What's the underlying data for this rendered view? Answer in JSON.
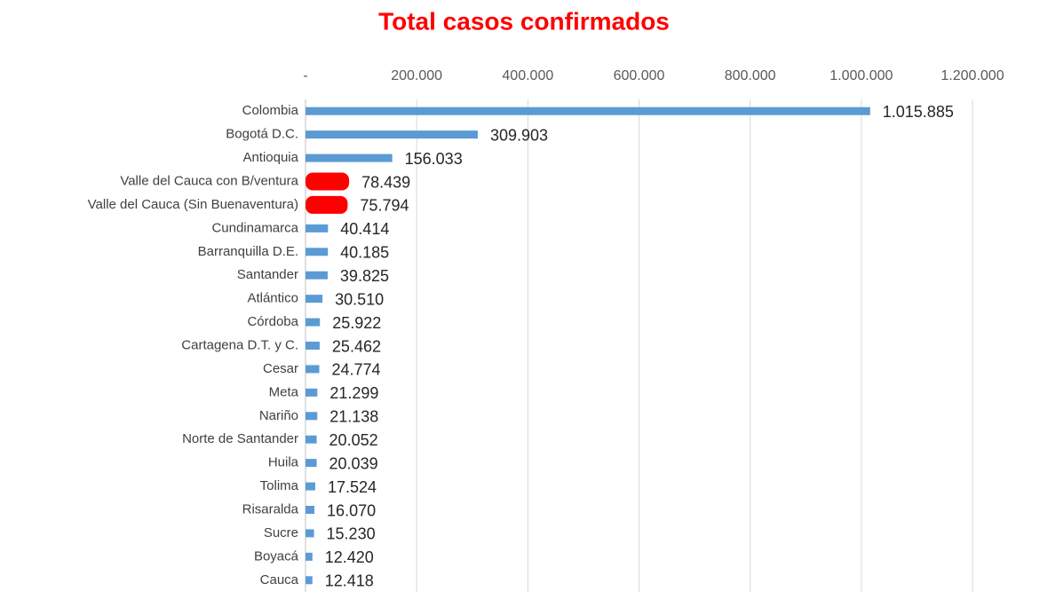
{
  "chart_data": {
    "type": "hbar",
    "title": "Total casos confirmados",
    "categories": [
      "Colombia",
      "Bogotá D.C.",
      "Antioquia",
      "Valle del Cauca con B/ventura",
      "Valle del Cauca (Sin Buenaventura)",
      "Cundinamarca",
      "Barranquilla D.E.",
      "Santander",
      "Atlántico",
      "Córdoba",
      "Cartagena D.T. y C.",
      "Cesar",
      "Meta",
      "Nariño",
      "Norte de Santander",
      "Huila",
      "Tolima",
      "Risaralda",
      "Sucre",
      "Boyacá",
      "Cauca"
    ],
    "values": [
      1015885,
      309903,
      156033,
      78439,
      75794,
      40414,
      40185,
      39825,
      30510,
      25922,
      25462,
      24774,
      21299,
      21138,
      20052,
      20039,
      17524,
      16070,
      15230,
      12420,
      12418
    ],
    "value_labels": [
      "1.015.885",
      "309.903",
      "156.033",
      "78.439",
      "75.794",
      "40.414",
      "40.185",
      "39.825",
      "30.510",
      "25.922",
      "25.462",
      "24.774",
      "21.299",
      "21.138",
      "20.052",
      "20.039",
      "17.524",
      "16.070",
      "15.230",
      "12.420",
      "12.418"
    ],
    "colors": [
      "#5b9bd5",
      "#5b9bd5",
      "#5b9bd5",
      "#ff0000",
      "#ff0000",
      "#5b9bd5",
      "#5b9bd5",
      "#5b9bd5",
      "#5b9bd5",
      "#5b9bd5",
      "#5b9bd5",
      "#5b9bd5",
      "#5b9bd5",
      "#5b9bd5",
      "#5b9bd5",
      "#5b9bd5",
      "#5b9bd5",
      "#5b9bd5",
      "#5b9bd5",
      "#5b9bd5",
      "#5b9bd5"
    ],
    "xlim": [
      0,
      1200000
    ],
    "xticks": [
      {
        "value": 0,
        "label": "-"
      },
      {
        "value": 200000,
        "label": "200.000"
      },
      {
        "value": 400000,
        "label": "400.000"
      },
      {
        "value": 600000,
        "label": "600.000"
      },
      {
        "value": 800000,
        "label": "800.000"
      },
      {
        "value": 1000000,
        "label": "1.000.000"
      },
      {
        "value": 1200000,
        "label": "1.200.000"
      }
    ],
    "grid": true
  }
}
